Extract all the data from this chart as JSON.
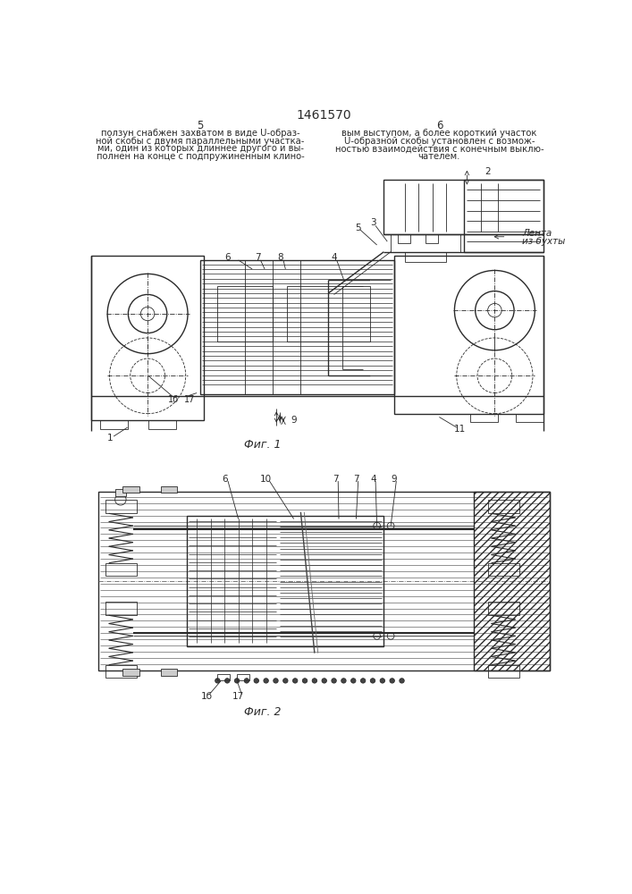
{
  "title": "1461570",
  "bg": "#ffffff",
  "lc": "#2a2a2a",
  "fig1_caption": "Фиг. 1",
  "fig2_caption": "Фиг. 2",
  "left_col_num": "5",
  "right_col_num": "6",
  "left_lines": [
    "ползун снабжен захватом в виде U-образ-",
    "ной скобы с двумя параллельными участка-",
    "ми, один из которых длиннее другого и вы-",
    "полнен на конце с подпружиненным клино-"
  ],
  "right_lines": [
    "вым выступом, а более короткий участок",
    "U-образной скобы установлен с возмож-",
    "ностью взаимодействия с конечным выклю-",
    "чателем."
  ],
  "lenta_label": "Лента",
  "iz_buhty_label": "из бухты"
}
